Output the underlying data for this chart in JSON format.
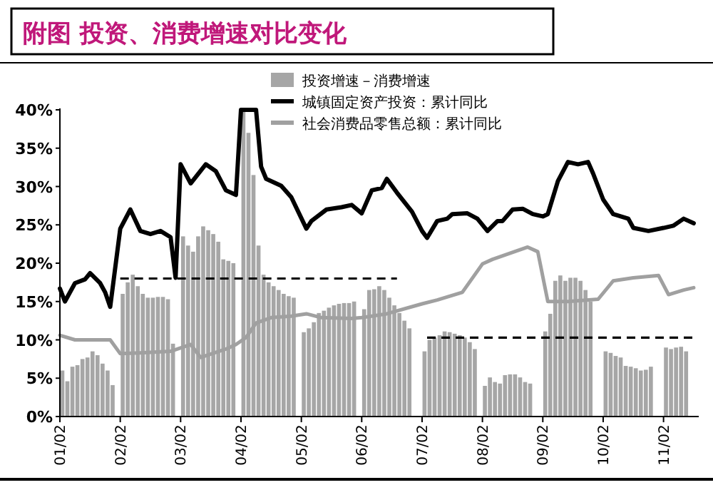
{
  "chart_data": {
    "type": "bar",
    "title": "附图    投资、消费增速对比变化",
    "legend": "top right",
    "grid": false,
    "xlim": [
      "2001-02",
      "2011-09"
    ],
    "ylim": [
      0,
      40
    ],
    "xticks": [
      {
        "value": "2001-02",
        "label": "01/02"
      },
      {
        "value": "2002-02",
        "label": "02/02"
      },
      {
        "value": "2003-02",
        "label": "03/02"
      },
      {
        "value": "2004-02",
        "label": "04/02"
      },
      {
        "value": "2005-02",
        "label": "05/02"
      },
      {
        "value": "2006-02",
        "label": "06/02"
      },
      {
        "value": "2007-02",
        "label": "07/02"
      },
      {
        "value": "2008-02",
        "label": "08/02"
      },
      {
        "value": "2009-02",
        "label": "09/02"
      },
      {
        "value": "2010-02",
        "label": "10/02"
      },
      {
        "value": "2011-02",
        "label": "11/02"
      }
    ],
    "yticks": [
      {
        "value": 0,
        "label": "0%"
      },
      {
        "value": 5,
        "label": "5%"
      },
      {
        "value": 10,
        "label": "10%"
      },
      {
        "value": 15,
        "label": "15%"
      },
      {
        "value": 20,
        "label": "20%"
      },
      {
        "value": 25,
        "label": "25%"
      },
      {
        "value": 30,
        "label": "30%"
      },
      {
        "value": 35,
        "label": "35%"
      },
      {
        "value": 40,
        "label": "40%"
      }
    ],
    "series": [
      {
        "name": "投资增速－消费增速",
        "color": "#a6a6a6",
        "x": [
          "2001-02",
          "2001-03",
          "2001-04",
          "2001-05",
          "2001-06",
          "2001-07",
          "2001-08",
          "2001-09",
          "2001-10",
          "2001-11",
          "2001-12",
          "2002-02",
          "2002-03",
          "2002-04",
          "2002-05",
          "2002-06",
          "2002-07",
          "2002-08",
          "2002-09",
          "2002-10",
          "2002-11",
          "2002-12",
          "2003-02",
          "2003-03",
          "2003-04",
          "2003-05",
          "2003-06",
          "2003-07",
          "2003-08",
          "2003-09",
          "2003-10",
          "2003-11",
          "2003-12",
          "2004-02",
          "2004-03",
          "2004-04",
          "2004-05",
          "2004-06",
          "2004-07",
          "2004-08",
          "2004-09",
          "2004-10",
          "2004-11",
          "2004-12",
          "2005-02",
          "2005-03",
          "2005-04",
          "2005-05",
          "2005-06",
          "2005-07",
          "2005-08",
          "2005-09",
          "2005-10",
          "2005-11",
          "2005-12",
          "2006-02",
          "2006-03",
          "2006-04",
          "2006-05",
          "2006-06",
          "2006-07",
          "2006-08",
          "2006-09",
          "2006-10",
          "2006-11",
          "2007-02",
          "2007-03",
          "2007-04",
          "2007-05",
          "2007-06",
          "2007-07",
          "2007-08",
          "2007-09",
          "2007-10",
          "2007-11",
          "2007-12",
          "2008-02",
          "2008-03",
          "2008-04",
          "2008-05",
          "2008-06",
          "2008-07",
          "2008-08",
          "2008-09",
          "2008-10",
          "2008-11",
          "2009-02",
          "2009-03",
          "2009-04",
          "2009-05",
          "2009-06",
          "2009-07",
          "2009-08",
          "2009-09",
          "2009-10",
          "2009-11",
          "2010-02",
          "2010-03",
          "2010-04",
          "2010-05",
          "2010-06",
          "2010-07",
          "2010-08",
          "2010-09",
          "2010-10",
          "2010-11",
          "2011-02",
          "2011-03",
          "2011-04",
          "2011-05",
          "2011-06"
        ],
        "values": [
          6.0,
          4.6,
          6.5,
          6.7,
          7.5,
          7.7,
          8.5,
          8.0,
          6.9,
          6.0,
          4.1,
          16.0,
          17.5,
          18.5,
          17.0,
          16.0,
          15.5,
          15.5,
          15.6,
          15.6,
          15.3,
          9.5,
          23.5,
          22.3,
          21.5,
          23.5,
          24.8,
          24.3,
          23.8,
          22.8,
          20.5,
          20.3,
          20.0,
          40,
          37,
          31.5,
          22.3,
          18.5,
          17.5,
          17,
          16.5,
          16.0,
          15.7,
          15.5,
          11.0,
          11.5,
          12.3,
          13.5,
          13.8,
          14.2,
          14.5,
          14.7,
          14.8,
          14.8,
          15.0,
          14.0,
          16.5,
          16.6,
          17.0,
          16.5,
          15.5,
          14.5,
          13.5,
          12.5,
          11.5,
          8.5,
          10.0,
          10.3,
          10.6,
          11.1,
          11.0,
          10.8,
          10.6,
          10.3,
          9.7,
          8.8,
          4.0,
          5.1,
          4.5,
          4.3,
          5.4,
          5.5,
          5.5,
          5.1,
          4.5,
          4.3,
          11.1,
          13.4,
          17.7,
          18.4,
          17.7,
          18.1,
          18.1,
          17.7,
          16.5,
          15.0,
          8.5,
          8.3,
          7.9,
          7.7,
          6.6,
          6.5,
          6.3,
          6.0,
          6.1,
          6.5,
          9.0,
          8.8,
          9.0,
          9.1,
          8.5
        ]
      },
      {
        "name": "城镇固定资产投资：累计同比",
        "type": "line",
        "color": "#000000",
        "x": [
          "2001-02",
          "2001-03",
          "2001-05",
          "2001-07",
          "2001-08",
          "2001-10",
          "2001-11",
          "2001-12",
          "2002-02",
          "2002-04",
          "2002-06",
          "2002-08",
          "2002-10",
          "2002-12",
          "2003-01",
          "2003-02",
          "2003-04",
          "2003-07",
          "2003-09",
          "2003-11",
          "2004-01",
          "2004-02",
          "2004-05",
          "2004-06",
          "2004-07",
          "2004-10",
          "2004-12",
          "2005-03",
          "2005-04",
          "2005-07",
          "2005-10",
          "2005-12",
          "2006-02",
          "2006-04",
          "2006-06",
          "2006-07",
          "2006-09",
          "2006-12",
          "2007-02",
          "2007-03",
          "2007-05",
          "2007-07",
          "2007-08",
          "2007-11",
          "2008-01",
          "2008-03",
          "2008-05",
          "2008-06",
          "2008-08",
          "2008-10",
          "2008-12",
          "2009-02",
          "2009-03",
          "2009-05",
          "2009-07",
          "2009-09",
          "2009-11",
          "2009-12",
          "2010-02",
          "2010-04",
          "2010-07",
          "2010-08",
          "2010-11",
          "2011-02",
          "2011-04",
          "2011-06",
          "2011-08"
        ],
        "values": [
          16.7,
          15.0,
          17.4,
          17.9,
          18.7,
          17.4,
          16.2,
          14.3,
          24.5,
          27.0,
          24.2,
          23.8,
          24.2,
          23.4,
          18.1,
          32.9,
          30.4,
          32.9,
          32.0,
          29.5,
          28.9,
          40,
          40,
          32.6,
          31.0,
          30.1,
          28.6,
          24.5,
          25.5,
          27.0,
          27.3,
          27.6,
          26.5,
          29.5,
          29.8,
          31.0,
          29.2,
          26.7,
          24.2,
          23.3,
          25.5,
          25.8,
          26.4,
          26.5,
          25.8,
          24.2,
          25.5,
          25.5,
          27.0,
          27.1,
          26.4,
          26.1,
          26.4,
          30.7,
          33.2,
          32.9,
          33.2,
          31.7,
          28.3,
          26.4,
          25.8,
          24.6,
          24.2,
          24.6,
          24.9,
          25.8,
          25.2
        ]
      },
      {
        "name": "社会消费品零售总额：累计同比",
        "type": "line",
        "color": "#a0a0a0",
        "x": [
          "2001-02",
          "2001-05",
          "2001-12",
          "2002-02",
          "2002-06",
          "2002-12",
          "2003-04",
          "2003-06",
          "2003-11",
          "2004-01",
          "2004-03",
          "2004-05",
          "2004-08",
          "2004-12",
          "2005-03",
          "2005-06",
          "2005-12",
          "2006-02",
          "2006-07",
          "2007-02",
          "2007-05",
          "2007-10",
          "2008-02",
          "2008-04",
          "2008-11",
          "2009-01",
          "2009-03",
          "2009-07",
          "2010-01",
          "2010-04",
          "2010-08",
          "2011-01",
          "2011-03",
          "2011-06",
          "2011-08"
        ],
        "values": [
          10.6,
          10.0,
          10.0,
          8.2,
          8.3,
          8.5,
          9.4,
          7.7,
          8.8,
          9.4,
          10.3,
          12.2,
          12.9,
          13.1,
          13.4,
          12.9,
          12.8,
          12.9,
          13.4,
          14.7,
          15.2,
          16.2,
          19.9,
          20.5,
          22.1,
          21.5,
          15.0,
          15.0,
          15.3,
          17.7,
          18.1,
          18.4,
          15.9,
          16.5,
          16.8
        ]
      },
      {
        "type": "line",
        "color": "#000000",
        "line_style": "dashed",
        "x": [
          "2002-02",
          "2006-09"
        ],
        "values": [
          18,
          18
        ]
      },
      {
        "type": "line",
        "color": "#000000",
        "line_style": "dashed",
        "x": [
          "2007-03",
          "2011-08"
        ],
        "values": [
          10.3,
          10.3
        ]
      }
    ]
  }
}
